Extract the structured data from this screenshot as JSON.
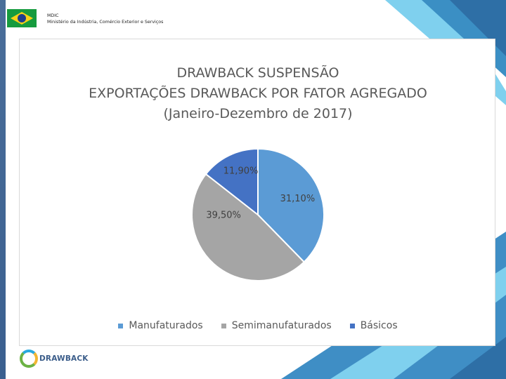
{
  "header": {
    "org_short": "MDIC",
    "org_full": "Ministério da Indústria, Comércio Exterior e Serviços"
  },
  "footer": {
    "logo_text": "DRAWBACK"
  },
  "chart_data": {
    "type": "pie",
    "title_lines": [
      "DRAWBACK SUSPENSÃO",
      "EXPORTAÇÕES DRAWBACK POR FATOR AGREGADO",
      "(Janeiro-Dezembro de 2017)"
    ],
    "categories": [
      "Manufaturados",
      "Semimanufaturados",
      "Básicos"
    ],
    "values": [
      31.1,
      39.5,
      11.9
    ],
    "value_labels": [
      "31,10%",
      "39,50%",
      "11,90%"
    ],
    "colors": [
      "#5b9bd5",
      "#a5a5a5",
      "#4472c4"
    ],
    "legend_position": "bottom"
  }
}
